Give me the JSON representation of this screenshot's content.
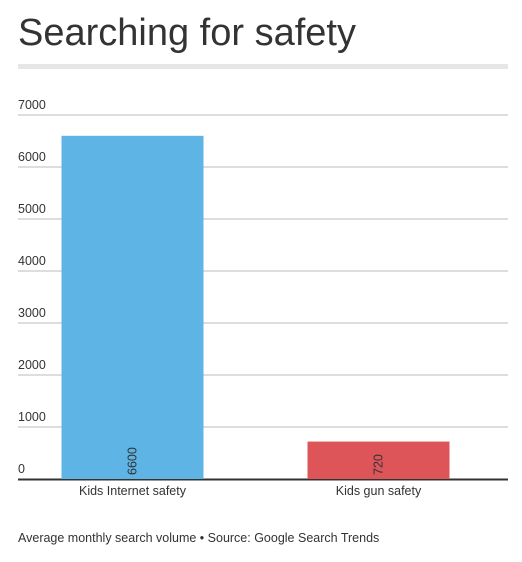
{
  "title": "Searching for safety",
  "footnote": "Average monthly search volume • Source: Google Search Trends",
  "colors": {
    "grid": "#bbbbbb",
    "axis": "#333333",
    "label": "#333333"
  },
  "chart_data": {
    "type": "bar",
    "categories": [
      "Kids Internet safety",
      "Kids gun safety"
    ],
    "values": [
      6600,
      720
    ],
    "bar_colors": [
      "#5db4e5",
      "#dd5558"
    ],
    "data_labels": [
      "6600",
      "720"
    ],
    "ylim": [
      0,
      7000
    ],
    "y_ticks": [
      0,
      1000,
      2000,
      3000,
      4000,
      5000,
      6000,
      7000
    ],
    "grid": true,
    "legend": "none",
    "title": "Searching for safety",
    "xlabel": "",
    "ylabel": ""
  }
}
